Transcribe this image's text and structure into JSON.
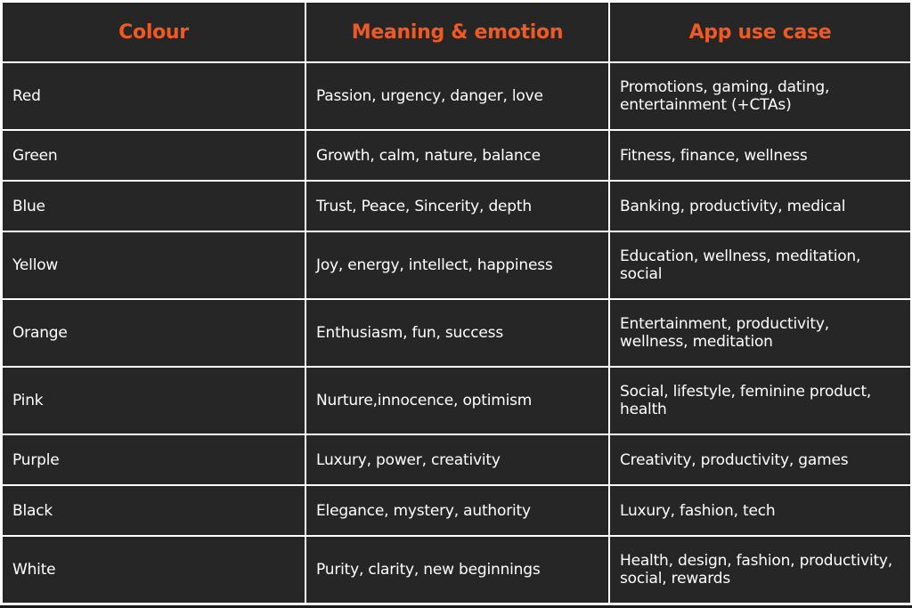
{
  "table": {
    "headers": [
      "Colour",
      "Meaning & emotion",
      "App use case"
    ],
    "rows": [
      {
        "colour": "Red",
        "meaning": "Passion, urgency, danger, love",
        "use_case": "Promotions, gaming, dating, entertainment (+CTAs)"
      },
      {
        "colour": "Green",
        "meaning": "Growth, calm, nature, balance",
        "use_case": "Fitness, finance, wellness"
      },
      {
        "colour": "Blue",
        "meaning": "Trust, Peace, Sincerity, depth",
        "use_case": "Banking, productivity, medical"
      },
      {
        "colour": "Yellow",
        "meaning": "Joy, energy, intellect, happiness",
        "use_case": "Education, wellness, meditation, social"
      },
      {
        "colour": "Orange",
        "meaning": "Enthusiasm, fun, success",
        "use_case": "Entertainment, productivity, wellness, meditation"
      },
      {
        "colour": "Pink",
        "meaning": "Nurture,innocence, optimism",
        "use_case": "Social, lifestyle, feminine product, health"
      },
      {
        "colour": "Purple",
        "meaning": "Luxury, power, creativity",
        "use_case": "Creativity, productivity, games"
      },
      {
        "colour": "Black",
        "meaning": "Elegance, mystery, authority",
        "use_case": "Luxury, fashion, tech"
      },
      {
        "colour": "White",
        "meaning": "Purity, clarity, new beginnings",
        "use_case": "Health, design, fashion, productivity, social, rewards"
      }
    ]
  },
  "colors": {
    "background": "#262626",
    "header_text": "#f05a22",
    "body_text": "#ffffff",
    "grid_lines": "#ffffff"
  }
}
